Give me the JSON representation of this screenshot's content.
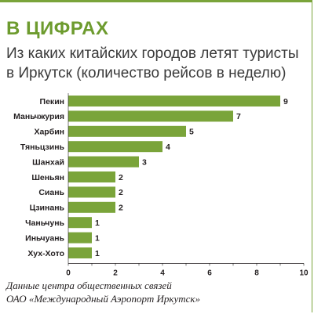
{
  "header": {
    "heading": "В ЦИФРАХ"
  },
  "chart_data": {
    "type": "bar",
    "orientation": "horizontal",
    "title": "Из каких китайских городов летят туристы в Иркутск (количество рейсов в неделю)",
    "categories": [
      "Пекин",
      "Маньчжурия",
      "Харбин",
      "Тяньцзинь",
      "Шанхай",
      "Шеньян",
      "Сиань",
      "Цзинань",
      "Чаньчунь",
      "Иньчуань",
      "Хух-Хото"
    ],
    "values": [
      9,
      7,
      5,
      4,
      3,
      2,
      2,
      2,
      1,
      1,
      1
    ],
    "xlim": [
      0,
      10
    ],
    "xticks": [
      0,
      2,
      4,
      6,
      8,
      10
    ],
    "grid": false,
    "bar_color": "#7aa43a"
  },
  "source": {
    "line1": "Данные центра общественных связей",
    "line2": "ОАО «Международный Аэропорт Иркутск»"
  },
  "colors": {
    "accent": "#6d9b2e",
    "bar": "#7aa43a",
    "text": "#231f20"
  }
}
